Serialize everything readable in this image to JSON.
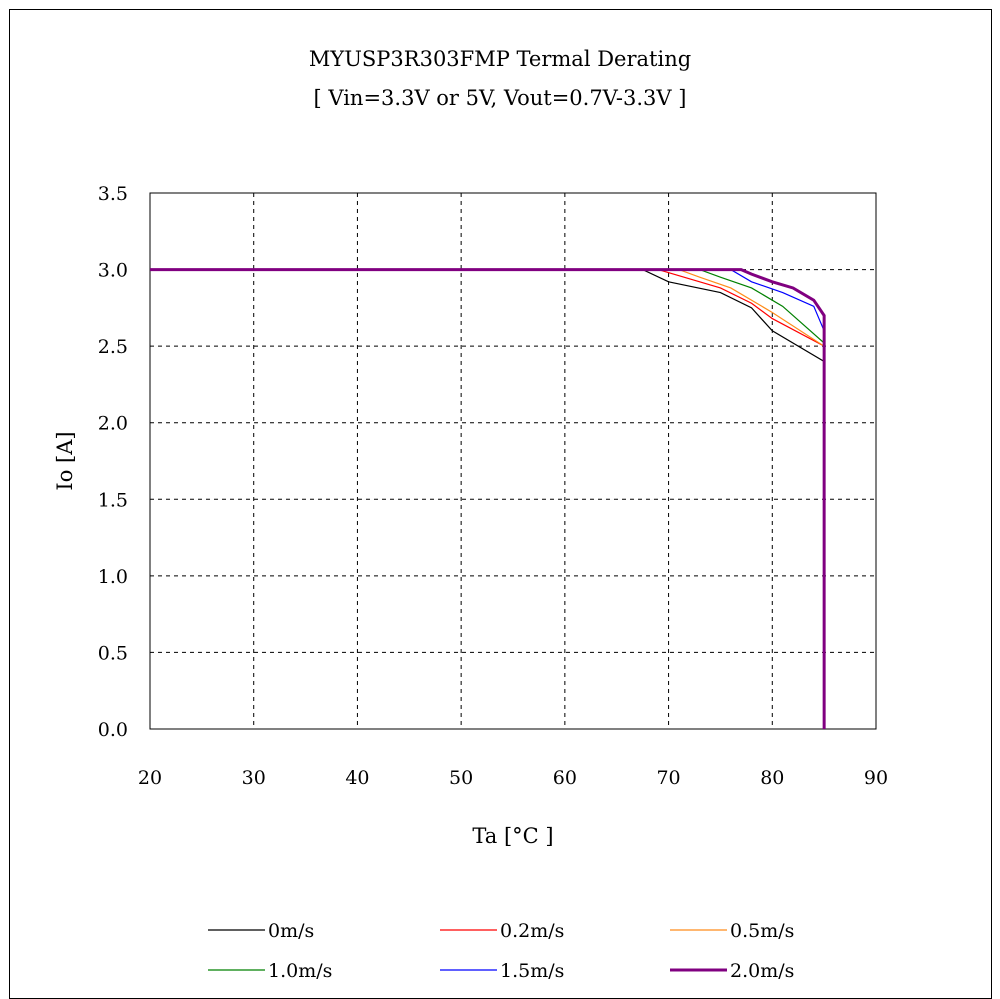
{
  "chart_data": {
    "type": "line",
    "title": "MYUSP3R303FMP Termal Derating",
    "subtitle": "[ Vin=3.3V or 5V, Vout=0.7V-3.3V ]",
    "xlabel": "Ta [°C ]",
    "ylabel": "Io [A]",
    "xlim": [
      20,
      90
    ],
    "ylim": [
      0,
      3.5
    ],
    "xticks": [
      "20",
      "30",
      "40",
      "50",
      "60",
      "70",
      "80",
      "90"
    ],
    "yticks": [
      "0.0",
      "0.5",
      "1.0",
      "1.5",
      "2.0",
      "2.5",
      "3.0",
      "3.5"
    ],
    "grid": true,
    "legend_position": "bottom",
    "series": [
      {
        "name": "0m/s",
        "color": "#000000",
        "points": [
          [
            20,
            3.0
          ],
          [
            67.5,
            3.0
          ],
          [
            70,
            2.92
          ],
          [
            75,
            2.85
          ],
          [
            78,
            2.75
          ],
          [
            80,
            2.6
          ],
          [
            85,
            2.4
          ],
          [
            85,
            0
          ]
        ]
      },
      {
        "name": "0.2m/s",
        "color": "#ff0000",
        "points": [
          [
            20,
            3.0
          ],
          [
            69,
            3.0
          ],
          [
            71,
            2.96
          ],
          [
            75,
            2.88
          ],
          [
            78,
            2.78
          ],
          [
            80,
            2.68
          ],
          [
            85,
            2.5
          ],
          [
            85,
            0
          ]
        ]
      },
      {
        "name": "0.5m/s",
        "color": "#ff8c1a",
        "points": [
          [
            20,
            3.0
          ],
          [
            71,
            3.0
          ],
          [
            73,
            2.95
          ],
          [
            76,
            2.88
          ],
          [
            80,
            2.72
          ],
          [
            85,
            2.5
          ],
          [
            85,
            0
          ]
        ]
      },
      {
        "name": "1.0m/s",
        "color": "#008000",
        "points": [
          [
            20,
            3.0
          ],
          [
            73,
            3.0
          ],
          [
            75,
            2.95
          ],
          [
            78,
            2.88
          ],
          [
            81,
            2.76
          ],
          [
            85,
            2.52
          ],
          [
            85,
            0
          ]
        ]
      },
      {
        "name": "1.5m/s",
        "color": "#0000ff",
        "points": [
          [
            20,
            3.0
          ],
          [
            76,
            3.0
          ],
          [
            78,
            2.92
          ],
          [
            81,
            2.85
          ],
          [
            84,
            2.76
          ],
          [
            85,
            2.6
          ],
          [
            85,
            0
          ]
        ]
      },
      {
        "name": "2.0m/s",
        "color": "#800080",
        "points": [
          [
            20,
            3.0
          ],
          [
            77,
            3.0
          ],
          [
            78,
            2.97
          ],
          [
            80,
            2.92
          ],
          [
            82,
            2.88
          ],
          [
            84,
            2.8
          ],
          [
            85,
            2.7
          ],
          [
            85,
            0
          ]
        ]
      }
    ]
  }
}
